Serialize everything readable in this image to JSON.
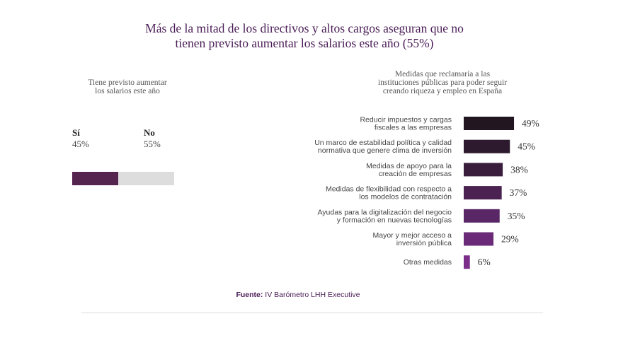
{
  "title": {
    "line1": "Más de la mitad de los directivos y altos cargos aseguran que no",
    "line2": "tienen previsto aumentar los salarios este año (55%)"
  },
  "left_panel": {
    "subtitle_line1": "Tiene previsto aumentar",
    "subtitle_line2": "los salarios este año",
    "yes_label": "Sí",
    "yes_value": "45%",
    "no_label": "No",
    "no_value": "55%",
    "yes_share": 45,
    "colors": {
      "yes": "#54244f",
      "no": "#dddddd"
    }
  },
  "right_panel": {
    "subtitle_line1": "Medidas que reclamaría a las",
    "subtitle_line2": "instituciones públicas para poder seguir",
    "subtitle_line3": "creando riqueza y empleo en España"
  },
  "chart_data": {
    "type": "bar",
    "orientation": "horizontal",
    "categories": [
      [
        "Reducir impuestos y cargas",
        "fiscales a las empresas"
      ],
      [
        "Un marco de estabilidad política y calidad",
        "normativa que genere clima de inversión"
      ],
      [
        "Medidas de apoyo para la",
        "creación de empresas"
      ],
      [
        "Medidas de flexibilidad con respecto a",
        "los modelos de contratación"
      ],
      [
        "Ayudas para la digitalización del negocio",
        "y formación en nuevas tecnologías"
      ],
      [
        "Mayor y mejor acceso a",
        "inversión pública"
      ],
      [
        "Otras medidas"
      ]
    ],
    "values": [
      49,
      45,
      38,
      37,
      35,
      29,
      6
    ],
    "value_labels": [
      "49%",
      "45%",
      "38%",
      "37%",
      "35%",
      "29%",
      "6%"
    ],
    "colors": [
      "#221620",
      "#2d1a2e",
      "#3a1d3d",
      "#4a2150",
      "#5a2766",
      "#6a2a78",
      "#7a2e8a"
    ]
  },
  "source": {
    "label": "Fuente:",
    "text": " IV Barómetro LHH Executive"
  }
}
